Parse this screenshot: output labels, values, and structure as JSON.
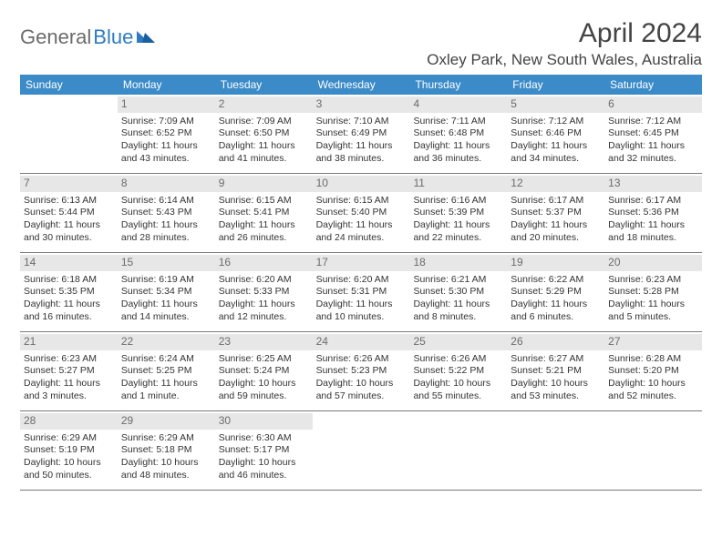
{
  "logo": {
    "part1": "General",
    "part2": "Blue"
  },
  "title": "April 2024",
  "location": "Oxley Park, New South Wales, Australia",
  "colors": {
    "header_bg": "#3b8bc8",
    "header_text": "#ffffff",
    "daynum_bg": "#e7e7e7",
    "daynum_text": "#6b6b6b",
    "body_text": "#333333",
    "logo_gray": "#6b6b6b",
    "logo_blue": "#2f7bbf",
    "rule": "#7a7a7a"
  },
  "weekdays": [
    "Sunday",
    "Monday",
    "Tuesday",
    "Wednesday",
    "Thursday",
    "Friday",
    "Saturday"
  ],
  "weeks": [
    [
      {
        "n": "",
        "sunrise": "",
        "sunset": "",
        "daylight": ""
      },
      {
        "n": "1",
        "sunrise": "Sunrise: 7:09 AM",
        "sunset": "Sunset: 6:52 PM",
        "daylight": "Daylight: 11 hours and 43 minutes."
      },
      {
        "n": "2",
        "sunrise": "Sunrise: 7:09 AM",
        "sunset": "Sunset: 6:50 PM",
        "daylight": "Daylight: 11 hours and 41 minutes."
      },
      {
        "n": "3",
        "sunrise": "Sunrise: 7:10 AM",
        "sunset": "Sunset: 6:49 PM",
        "daylight": "Daylight: 11 hours and 38 minutes."
      },
      {
        "n": "4",
        "sunrise": "Sunrise: 7:11 AM",
        "sunset": "Sunset: 6:48 PM",
        "daylight": "Daylight: 11 hours and 36 minutes."
      },
      {
        "n": "5",
        "sunrise": "Sunrise: 7:12 AM",
        "sunset": "Sunset: 6:46 PM",
        "daylight": "Daylight: 11 hours and 34 minutes."
      },
      {
        "n": "6",
        "sunrise": "Sunrise: 7:12 AM",
        "sunset": "Sunset: 6:45 PM",
        "daylight": "Daylight: 11 hours and 32 minutes."
      }
    ],
    [
      {
        "n": "7",
        "sunrise": "Sunrise: 6:13 AM",
        "sunset": "Sunset: 5:44 PM",
        "daylight": "Daylight: 11 hours and 30 minutes."
      },
      {
        "n": "8",
        "sunrise": "Sunrise: 6:14 AM",
        "sunset": "Sunset: 5:43 PM",
        "daylight": "Daylight: 11 hours and 28 minutes."
      },
      {
        "n": "9",
        "sunrise": "Sunrise: 6:15 AM",
        "sunset": "Sunset: 5:41 PM",
        "daylight": "Daylight: 11 hours and 26 minutes."
      },
      {
        "n": "10",
        "sunrise": "Sunrise: 6:15 AM",
        "sunset": "Sunset: 5:40 PM",
        "daylight": "Daylight: 11 hours and 24 minutes."
      },
      {
        "n": "11",
        "sunrise": "Sunrise: 6:16 AM",
        "sunset": "Sunset: 5:39 PM",
        "daylight": "Daylight: 11 hours and 22 minutes."
      },
      {
        "n": "12",
        "sunrise": "Sunrise: 6:17 AM",
        "sunset": "Sunset: 5:37 PM",
        "daylight": "Daylight: 11 hours and 20 minutes."
      },
      {
        "n": "13",
        "sunrise": "Sunrise: 6:17 AM",
        "sunset": "Sunset: 5:36 PM",
        "daylight": "Daylight: 11 hours and 18 minutes."
      }
    ],
    [
      {
        "n": "14",
        "sunrise": "Sunrise: 6:18 AM",
        "sunset": "Sunset: 5:35 PM",
        "daylight": "Daylight: 11 hours and 16 minutes."
      },
      {
        "n": "15",
        "sunrise": "Sunrise: 6:19 AM",
        "sunset": "Sunset: 5:34 PM",
        "daylight": "Daylight: 11 hours and 14 minutes."
      },
      {
        "n": "16",
        "sunrise": "Sunrise: 6:20 AM",
        "sunset": "Sunset: 5:33 PM",
        "daylight": "Daylight: 11 hours and 12 minutes."
      },
      {
        "n": "17",
        "sunrise": "Sunrise: 6:20 AM",
        "sunset": "Sunset: 5:31 PM",
        "daylight": "Daylight: 11 hours and 10 minutes."
      },
      {
        "n": "18",
        "sunrise": "Sunrise: 6:21 AM",
        "sunset": "Sunset: 5:30 PM",
        "daylight": "Daylight: 11 hours and 8 minutes."
      },
      {
        "n": "19",
        "sunrise": "Sunrise: 6:22 AM",
        "sunset": "Sunset: 5:29 PM",
        "daylight": "Daylight: 11 hours and 6 minutes."
      },
      {
        "n": "20",
        "sunrise": "Sunrise: 6:23 AM",
        "sunset": "Sunset: 5:28 PM",
        "daylight": "Daylight: 11 hours and 5 minutes."
      }
    ],
    [
      {
        "n": "21",
        "sunrise": "Sunrise: 6:23 AM",
        "sunset": "Sunset: 5:27 PM",
        "daylight": "Daylight: 11 hours and 3 minutes."
      },
      {
        "n": "22",
        "sunrise": "Sunrise: 6:24 AM",
        "sunset": "Sunset: 5:25 PM",
        "daylight": "Daylight: 11 hours and 1 minute."
      },
      {
        "n": "23",
        "sunrise": "Sunrise: 6:25 AM",
        "sunset": "Sunset: 5:24 PM",
        "daylight": "Daylight: 10 hours and 59 minutes."
      },
      {
        "n": "24",
        "sunrise": "Sunrise: 6:26 AM",
        "sunset": "Sunset: 5:23 PM",
        "daylight": "Daylight: 10 hours and 57 minutes."
      },
      {
        "n": "25",
        "sunrise": "Sunrise: 6:26 AM",
        "sunset": "Sunset: 5:22 PM",
        "daylight": "Daylight: 10 hours and 55 minutes."
      },
      {
        "n": "26",
        "sunrise": "Sunrise: 6:27 AM",
        "sunset": "Sunset: 5:21 PM",
        "daylight": "Daylight: 10 hours and 53 minutes."
      },
      {
        "n": "27",
        "sunrise": "Sunrise: 6:28 AM",
        "sunset": "Sunset: 5:20 PM",
        "daylight": "Daylight: 10 hours and 52 minutes."
      }
    ],
    [
      {
        "n": "28",
        "sunrise": "Sunrise: 6:29 AM",
        "sunset": "Sunset: 5:19 PM",
        "daylight": "Daylight: 10 hours and 50 minutes."
      },
      {
        "n": "29",
        "sunrise": "Sunrise: 6:29 AM",
        "sunset": "Sunset: 5:18 PM",
        "daylight": "Daylight: 10 hours and 48 minutes."
      },
      {
        "n": "30",
        "sunrise": "Sunrise: 6:30 AM",
        "sunset": "Sunset: 5:17 PM",
        "daylight": "Daylight: 10 hours and 46 minutes."
      },
      {
        "n": "",
        "sunrise": "",
        "sunset": "",
        "daylight": ""
      },
      {
        "n": "",
        "sunrise": "",
        "sunset": "",
        "daylight": ""
      },
      {
        "n": "",
        "sunrise": "",
        "sunset": "",
        "daylight": ""
      },
      {
        "n": "",
        "sunrise": "",
        "sunset": "",
        "daylight": ""
      }
    ]
  ]
}
